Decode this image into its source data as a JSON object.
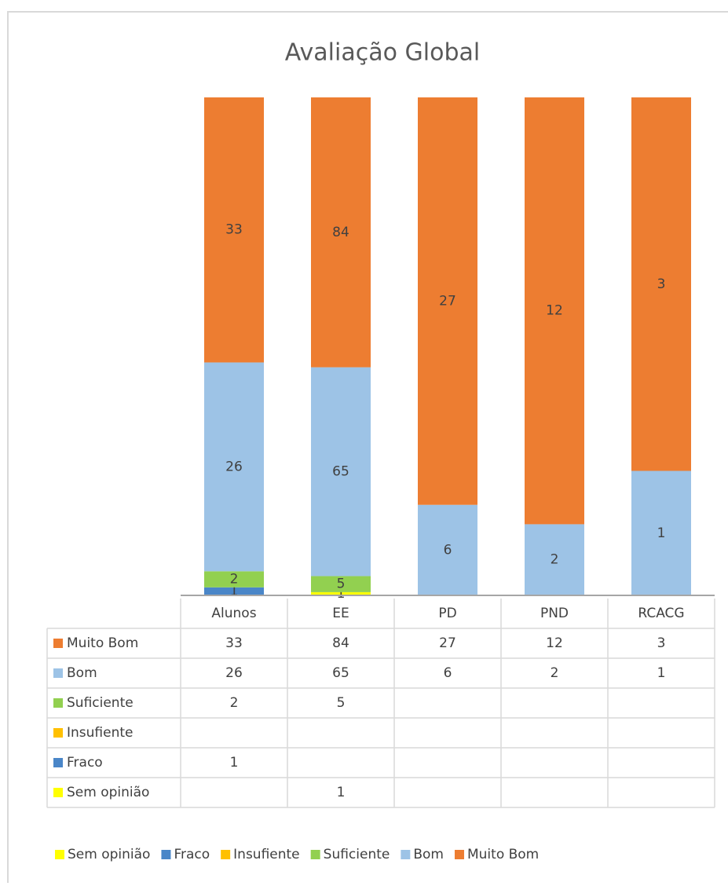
{
  "chart_data": {
    "type": "stacked_bar_100",
    "title": "Avaliação Global",
    "categories": [
      "Alunos",
      "EE",
      "PD",
      "PND",
      "RCACG"
    ],
    "series": [
      {
        "name": "Sem opinião",
        "color": "#ffff00",
        "values": [
          null,
          1,
          null,
          null,
          null
        ]
      },
      {
        "name": "Fraco",
        "color": "#4a86c8",
        "values": [
          1,
          null,
          null,
          null,
          null
        ]
      },
      {
        "name": "Insufiente",
        "color": "#ffc000",
        "values": [
          null,
          null,
          null,
          null,
          null
        ]
      },
      {
        "name": "Suficiente",
        "color": "#92d050",
        "values": [
          2,
          5,
          null,
          null,
          null
        ]
      },
      {
        "name": "Bom",
        "color": "#9dc3e6",
        "values": [
          26,
          65,
          6,
          2,
          1
        ]
      },
      {
        "name": "Muito Bom",
        "color": "#ed7d31",
        "values": [
          33,
          84,
          27,
          12,
          3
        ]
      }
    ],
    "data_table": true,
    "legend": "bottom"
  }
}
